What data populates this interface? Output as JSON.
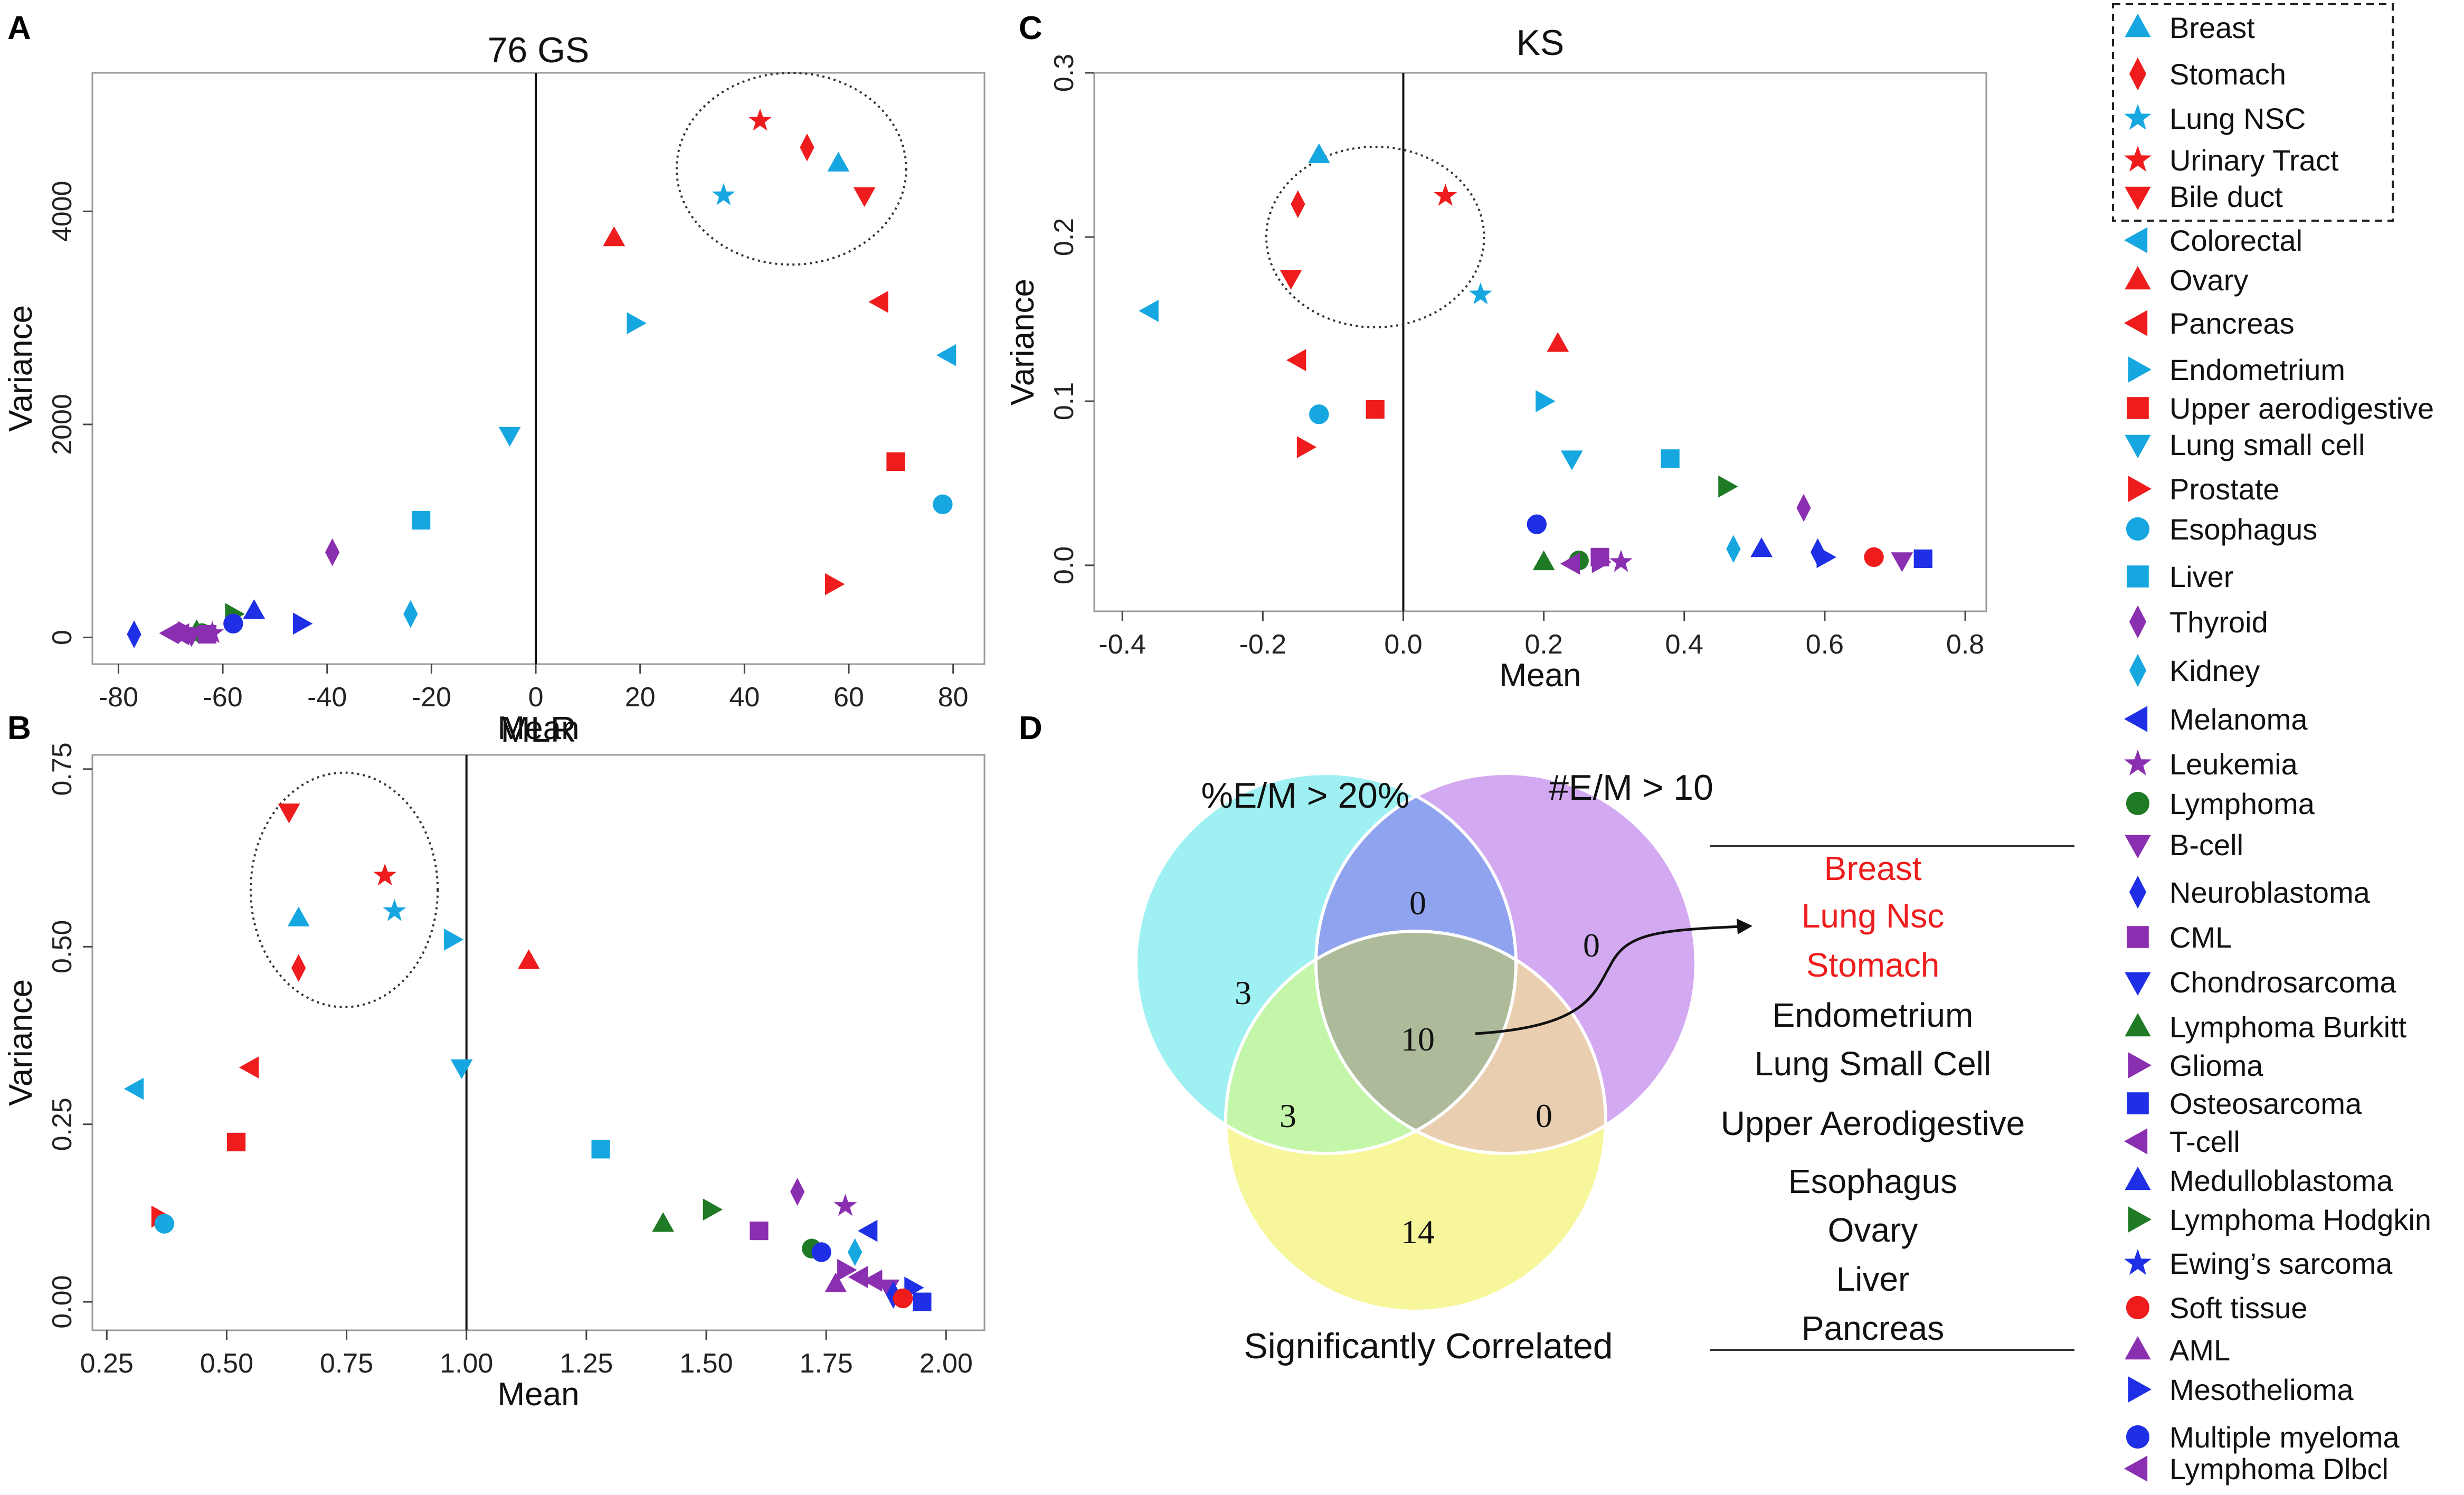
{
  "panels": {
    "A": {
      "letter": "A"
    },
    "B": {
      "letter": "B"
    },
    "C": {
      "letter": "C"
    },
    "D": {
      "letter": "D"
    }
  },
  "colors": {
    "cyan": "#1db3b3",
    "red": "#ee1c1c",
    "skyblue": "#16a7e0",
    "blue": "#1f2fe6",
    "purple": "#8a2fb0",
    "magenta": "#b025c4",
    "green": "#1f7a25"
  },
  "chart_data": [
    {
      "id": "A",
      "type": "scatter",
      "title": "76 GS",
      "xlabel": "Mean",
      "ylabel": "Variance",
      "xlim": [
        -85,
        86
      ],
      "ylim": [
        -250,
        5300
      ],
      "xticks": [
        -80,
        -60,
        -40,
        -20,
        0,
        20,
        40,
        60,
        80
      ],
      "yticks": [
        0,
        2000,
        4000
      ],
      "vline": 0,
      "circle": {
        "cx": 49,
        "cy": 4400,
        "rx": 22,
        "ry": 900
      },
      "points": [
        {
          "label": "Breast",
          "x": 58,
          "y": 4450
        },
        {
          "label": "Stomach",
          "x": 52,
          "y": 4600
        },
        {
          "label": "Lung NSC",
          "x": 36,
          "y": 4150
        },
        {
          "label": "Urinary Tract",
          "x": 43,
          "y": 4850
        },
        {
          "label": "Bile duct",
          "x": 63,
          "y": 4150
        },
        {
          "label": "Ovary",
          "x": 15,
          "y": 3750
        },
        {
          "label": "Endometrium",
          "x": 19,
          "y": 2950
        },
        {
          "label": "Pancreas",
          "x": 66,
          "y": 3150
        },
        {
          "label": "Colorectal",
          "x": 79,
          "y": 2650
        },
        {
          "label": "Lung small cell",
          "x": -5,
          "y": 1900
        },
        {
          "label": "Upper aerodigestive",
          "x": 69,
          "y": 1650
        },
        {
          "label": "Esophagus",
          "x": 78,
          "y": 1250
        },
        {
          "label": "Liver",
          "x": -22,
          "y": 1100
        },
        {
          "label": "Thyroid",
          "x": -39,
          "y": 800
        },
        {
          "label": "Prostate",
          "x": 57,
          "y": 500
        },
        {
          "label": "Kidney",
          "x": -24,
          "y": 220
        },
        {
          "label": "Neuroblastoma",
          "x": -77,
          "y": 30
        },
        {
          "label": "Mesothelioma",
          "x": -45,
          "y": 130
        },
        {
          "label": "Medulloblastoma",
          "x": -54,
          "y": 250
        },
        {
          "label": "Lymphoma Hodgkin",
          "x": -58,
          "y": 220
        },
        {
          "label": "Multiple myeloma",
          "x": -58,
          "y": 130
        },
        {
          "label": "Lymphoma Burkitt",
          "x": -65,
          "y": 60
        },
        {
          "label": "Lymphoma",
          "x": -64,
          "y": 40
        },
        {
          "label": "T-cell",
          "x": -70,
          "y": 40
        },
        {
          "label": "B-cell",
          "x": -66,
          "y": 20
        },
        {
          "label": "Leukemia",
          "x": -62,
          "y": 40
        },
        {
          "label": "CML",
          "x": -63,
          "y": 30
        },
        {
          "label": "Glioma",
          "x": -67,
          "y": 50
        },
        {
          "label": "Lymphoma Dlbcl",
          "x": -68,
          "y": 30
        }
      ]
    },
    {
      "id": "B",
      "type": "scatter",
      "title": "MLR",
      "xlabel": "Mean",
      "ylabel": "Variance",
      "xlim": [
        0.22,
        2.08
      ],
      "ylim": [
        -0.04,
        0.77
      ],
      "xticks": [
        0.25,
        0.5,
        0.75,
        1.0,
        1.25,
        1.5,
        1.75,
        2.0
      ],
      "yticks": [
        0.0,
        0.25,
        0.5,
        0.75
      ],
      "xticklabels": [
        "0.25",
        "0.50",
        "0.75",
        "1.00",
        "1.25",
        "1.50",
        "1.75",
        "2.00"
      ],
      "yticklabels": [
        "0.00",
        "0.25",
        "0.50",
        "0.75"
      ],
      "vline": 1.0,
      "circle": {
        "cx": 0.745,
        "cy": 0.58,
        "rx": 0.195,
        "ry": 0.165
      },
      "points": [
        {
          "label": "Bile duct",
          "x": 0.63,
          "y": 0.69
        },
        {
          "label": "Urinary Tract",
          "x": 0.83,
          "y": 0.6
        },
        {
          "label": "Lung NSC",
          "x": 0.85,
          "y": 0.55
        },
        {
          "label": "Breast",
          "x": 0.65,
          "y": 0.54
        },
        {
          "label": "Stomach",
          "x": 0.65,
          "y": 0.47
        },
        {
          "label": "Endometrium",
          "x": 0.97,
          "y": 0.51
        },
        {
          "label": "Ovary",
          "x": 1.13,
          "y": 0.48
        },
        {
          "label": "Lung small cell",
          "x": 0.99,
          "y": 0.33
        },
        {
          "label": "Pancreas",
          "x": 0.55,
          "y": 0.33
        },
        {
          "label": "Colorectal",
          "x": 0.31,
          "y": 0.3
        },
        {
          "label": "Upper aerodigestive",
          "x": 0.52,
          "y": 0.225
        },
        {
          "label": "Liver",
          "x": 1.28,
          "y": 0.215
        },
        {
          "label": "Prostate",
          "x": 0.36,
          "y": 0.12
        },
        {
          "label": "Esophagus",
          "x": 0.37,
          "y": 0.11
        },
        {
          "label": "Lymphoma Burkitt",
          "x": 1.41,
          "y": 0.11
        },
        {
          "label": "Lymphoma Hodgkin",
          "x": 1.51,
          "y": 0.13
        },
        {
          "label": "CML",
          "x": 1.61,
          "y": 0.1
        },
        {
          "label": "Thyroid",
          "x": 1.69,
          "y": 0.155
        },
        {
          "label": "Leukemia",
          "x": 1.79,
          "y": 0.135
        },
        {
          "label": "Melanoma",
          "x": 1.84,
          "y": 0.1
        },
        {
          "label": "Lymphoma",
          "x": 1.72,
          "y": 0.075
        },
        {
          "label": "Kidney",
          "x": 1.81,
          "y": 0.07
        },
        {
          "label": "Multiple myeloma",
          "x": 1.74,
          "y": 0.07
        },
        {
          "label": "Glioma",
          "x": 1.79,
          "y": 0.045
        },
        {
          "label": "Lymphoma Dlbcl",
          "x": 1.85,
          "y": 0.03
        },
        {
          "label": "AML",
          "x": 1.77,
          "y": 0.025
        },
        {
          "label": "T-cell",
          "x": 1.82,
          "y": 0.035
        },
        {
          "label": "B-cell",
          "x": 1.88,
          "y": 0.02
        },
        {
          "label": "Mesothelioma",
          "x": 1.93,
          "y": 0.02
        },
        {
          "label": "Neuroblastoma",
          "x": 1.89,
          "y": 0.01
        },
        {
          "label": "Soft tissue",
          "x": 1.91,
          "y": 0.005
        },
        {
          "label": "Osteosarcoma",
          "x": 1.95,
          "y": 0.0
        }
      ]
    },
    {
      "id": "C",
      "type": "scatter",
      "title": "KS",
      "xlabel": "Mean",
      "ylabel": "Variance",
      "xlim": [
        -0.44,
        0.83
      ],
      "ylim": [
        -0.028,
        0.3
      ],
      "xticks": [
        -0.4,
        -0.2,
        0.0,
        0.2,
        0.4,
        0.6,
        0.8
      ],
      "yticks": [
        0.0,
        0.1,
        0.2,
        0.3
      ],
      "xticklabels": [
        "-0.4",
        "-0.2",
        "0.0",
        "0.2",
        "0.4",
        "0.6",
        "0.8"
      ],
      "yticklabels": [
        "0.0",
        "0.1",
        "0.2",
        "0.3"
      ],
      "vline": 0.0,
      "circle": {
        "cx": -0.04,
        "cy": 0.2,
        "rx": 0.155,
        "ry": 0.055
      },
      "points": [
        {
          "label": "Breast",
          "x": -0.12,
          "y": 0.25
        },
        {
          "label": "Urinary Tract",
          "x": 0.06,
          "y": 0.225
        },
        {
          "label": "Stomach",
          "x": -0.15,
          "y": 0.22
        },
        {
          "label": "Bile duct",
          "x": -0.16,
          "y": 0.175
        },
        {
          "label": "Lung NSC",
          "x": 0.11,
          "y": 0.165
        },
        {
          "label": "Colorectal",
          "x": -0.36,
          "y": 0.155
        },
        {
          "label": "Ovary",
          "x": 0.22,
          "y": 0.135
        },
        {
          "label": "Pancreas",
          "x": -0.15,
          "y": 0.125
        },
        {
          "label": "Endometrium",
          "x": 0.2,
          "y": 0.1
        },
        {
          "label": "Upper aerodigestive",
          "x": -0.04,
          "y": 0.095
        },
        {
          "label": "Esophagus",
          "x": -0.12,
          "y": 0.092
        },
        {
          "label": "Prostate",
          "x": -0.14,
          "y": 0.072
        },
        {
          "label": "Lung small cell",
          "x": 0.24,
          "y": 0.065
        },
        {
          "label": "Liver",
          "x": 0.38,
          "y": 0.065
        },
        {
          "label": "Lymphoma Hodgkin",
          "x": 0.46,
          "y": 0.048
        },
        {
          "label": "Thyroid",
          "x": 0.57,
          "y": 0.035
        },
        {
          "label": "Multiple myeloma",
          "x": 0.19,
          "y": 0.025
        },
        {
          "label": "Kidney",
          "x": 0.47,
          "y": 0.01
        },
        {
          "label": "Medulloblastoma",
          "x": 0.51,
          "y": 0.01
        },
        {
          "label": "Neuroblastoma",
          "x": 0.59,
          "y": 0.008
        },
        {
          "label": "Mesothelioma",
          "x": 0.6,
          "y": 0.005
        },
        {
          "label": "Soft tissue",
          "x": 0.67,
          "y": 0.005
        },
        {
          "label": "B-cell",
          "x": 0.71,
          "y": 0.003
        },
        {
          "label": "Osteosarcoma",
          "x": 0.74,
          "y": 0.004
        },
        {
          "label": "Lymphoma Burkitt",
          "x": 0.2,
          "y": 0.002
        },
        {
          "label": "Lymphoma",
          "x": 0.25,
          "y": 0.003
        },
        {
          "label": "CML",
          "x": 0.28,
          "y": 0.005
        },
        {
          "label": "Leukemia",
          "x": 0.31,
          "y": 0.002
        },
        {
          "label": "Glioma",
          "x": 0.28,
          "y": 0.002
        },
        {
          "label": "Lymphoma Dlbcl",
          "x": 0.24,
          "y": 0.001
        }
      ]
    }
  ],
  "legend": {
    "items": [
      {
        "label": "Breast",
        "shape": "triup",
        "color": "#16a7e0",
        "boxed": true
      },
      {
        "label": "Stomach",
        "shape": "diamond",
        "color": "#ee1c1c",
        "boxed": true
      },
      {
        "label": "Lung NSC",
        "shape": "star",
        "color": "#16a7e0",
        "boxed": true
      },
      {
        "label": "Urinary Tract",
        "shape": "star",
        "color": "#ee1c1c",
        "boxed": true
      },
      {
        "label": "Bile duct",
        "shape": "tridown",
        "color": "#ee1c1c",
        "boxed": true
      },
      {
        "label": "Colorectal",
        "shape": "trileft",
        "color": "#16a7e0"
      },
      {
        "label": "Ovary",
        "shape": "triup",
        "color": "#ee1c1c"
      },
      {
        "label": "Pancreas",
        "shape": "trileft",
        "color": "#ee1c1c"
      },
      {
        "label": "Endometrium",
        "shape": "triright",
        "color": "#16a7e0"
      },
      {
        "label": "Upper  aerodigestive",
        "shape": "square",
        "color": "#ee1c1c"
      },
      {
        "label": "Lung small cell",
        "shape": "tridown",
        "color": "#16a7e0"
      },
      {
        "label": "Prostate",
        "shape": "triright",
        "color": "#ee1c1c"
      },
      {
        "label": "Esophagus",
        "shape": "circle",
        "color": "#16a7e0"
      },
      {
        "label": "Liver",
        "shape": "square",
        "color": "#16a7e0"
      },
      {
        "label": "Thyroid",
        "shape": "diamond",
        "color": "#8a2fb0"
      },
      {
        "label": "Kidney",
        "shape": "diamond",
        "color": "#16a7e0"
      },
      {
        "label": "Melanoma",
        "shape": "trileft",
        "color": "#1f2fe6"
      },
      {
        "label": "Leukemia",
        "shape": "star",
        "color": "#8a2fb0"
      },
      {
        "label": "Lymphoma",
        "shape": "circle",
        "color": "#1f7a25"
      },
      {
        "label": "B-cell",
        "shape": "tridown",
        "color": "#8a2fb0"
      },
      {
        "label": "Neuroblastoma",
        "shape": "diamond",
        "color": "#1f2fe6"
      },
      {
        "label": "CML",
        "shape": "square",
        "color": "#8a2fb0"
      },
      {
        "label": "Chondrosarcoma",
        "shape": "tridown",
        "color": "#1f2fe6"
      },
      {
        "label": "Lymphoma  Burkitt",
        "shape": "triup",
        "color": "#1f7a25"
      },
      {
        "label": "Glioma",
        "shape": "triright",
        "color": "#8a2fb0"
      },
      {
        "label": "Osteosarcoma",
        "shape": "square",
        "color": "#1f2fe6"
      },
      {
        "label": "T-cell",
        "shape": "trileft",
        "color": "#8a2fb0"
      },
      {
        "label": "Medulloblastoma",
        "shape": "triup",
        "color": "#1f2fe6"
      },
      {
        "label": "Lymphoma  Hodgkin",
        "shape": "triright",
        "color": "#1f7a25"
      },
      {
        "label": "Ewing’s sarcoma",
        "shape": "star",
        "color": "#1f2fe6"
      },
      {
        "label": "Soft tissue",
        "shape": "circle",
        "color": "#ee1c1c"
      },
      {
        "label": "AML",
        "shape": "triup",
        "color": "#8a2fb0"
      },
      {
        "label": "Mesothelioma",
        "shape": "triright",
        "color": "#1f2fe6"
      },
      {
        "label": "Multiple  myeloma",
        "shape": "circle",
        "color": "#1f2fe6"
      },
      {
        "label": "Lymphoma  Dlbcl",
        "shape": "trileft",
        "color": "#8a2fb0"
      }
    ]
  },
  "venn": {
    "set_labels": [
      "%E/M > 20%",
      "#E/M > 10",
      "Significantly Correlated"
    ],
    "counts": {
      "only_a": "3",
      "a_and_b": "0",
      "only_b": "0",
      "all": "10",
      "a_and_c": "3",
      "b_and_c": "0",
      "only_c": "14"
    },
    "colors": {
      "a": "#9ff0f2",
      "b": "#d3a9f2",
      "c": "#f7f69a",
      "ab": "#8fa3ee",
      "ac": "#c3f6a8",
      "bc": "#e9cfb0",
      "abc": "#adbb9a"
    },
    "list_red": [
      "Breast",
      "Lung Nsc",
      "Stomach"
    ],
    "list_black": [
      "Endometrium",
      "Lung Small Cell",
      "Upper Aerodigestive",
      "Esophagus",
      "Ovary",
      "Liver",
      "Pancreas"
    ]
  }
}
